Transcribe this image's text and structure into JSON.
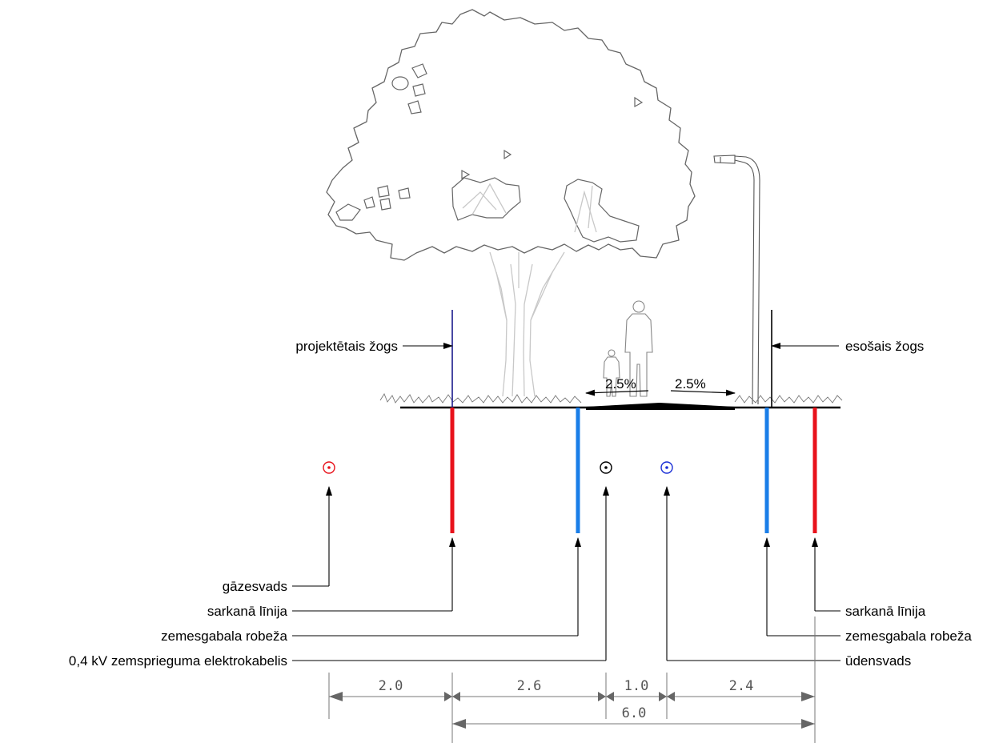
{
  "labels": {
    "projected_fence": "projektētais žogs",
    "existing_fence": "esošais žogs",
    "gas_pipe": "gāzesvads",
    "red_line_left": "sarkanā līnija",
    "plot_border_left": "zemesgabala robeža",
    "low_voltage_cable": "0,4 kV zemsprieguma elektrokabelis",
    "red_line_right": "sarkanā līnija",
    "plot_border_right": "zemesgabala robeža",
    "water_pipe": "ūdensvads"
  },
  "slopes": {
    "left": "2.5%",
    "right": "2.5%"
  },
  "dimensions": {
    "d1": "2.0",
    "d2": "2.6",
    "d3": "1.0",
    "d4": "2.4",
    "total": "6.0"
  },
  "colors": {
    "red_line": "#e8121b",
    "plot_border": "#1a7ee8",
    "gas_symbol": "#e8121b",
    "water_symbol": "#1a2fd6",
    "cable_symbol": "#000000",
    "projected_fence": "#1a1a8c",
    "tree_outline": "#666666",
    "trunk": "#c8c8c8",
    "dimension": "#555555"
  }
}
